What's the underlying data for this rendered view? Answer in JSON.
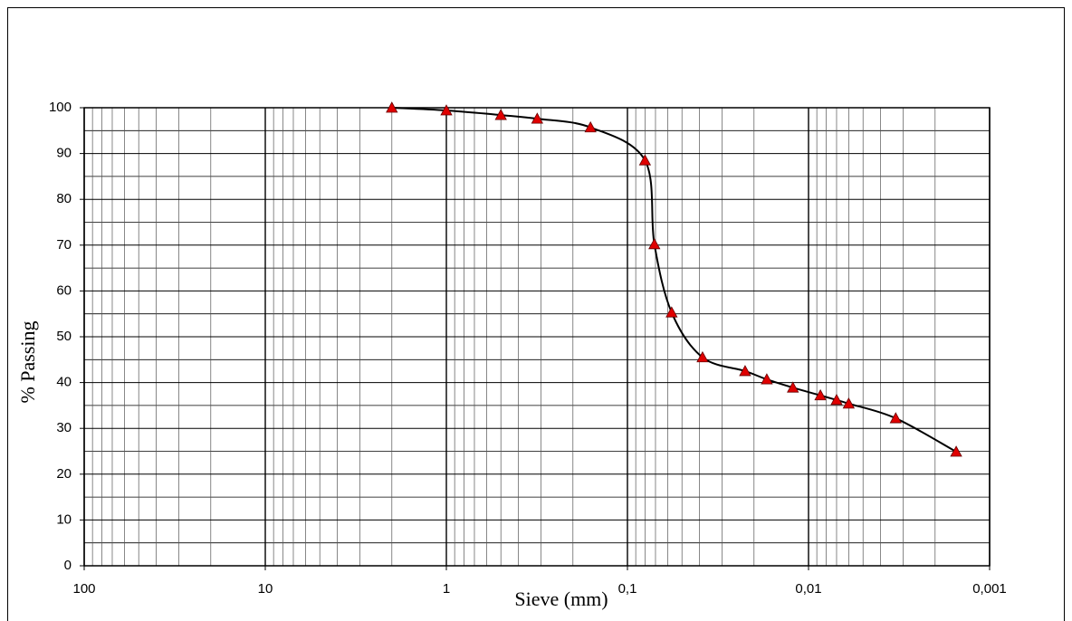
{
  "chart_data": {
    "type": "line",
    "x_label": "Sieve (mm)",
    "y_label": "% Passing",
    "x": [
      2,
      1,
      0.5,
      0.315,
      0.16,
      0.08,
      0.071,
      0.057,
      0.0385,
      0.0224,
      0.017,
      0.0122,
      0.0086,
      0.007,
      0.006,
      0.0033,
      0.00153
    ],
    "series": [
      {
        "name": "Passing",
        "color": "#000000",
        "marker_color": "#e00000",
        "values": [
          100,
          99.4,
          98.4,
          97.6,
          95.7,
          88.5,
          70.2,
          55.3,
          45.5,
          42.5,
          40.7,
          38.9,
          37.2,
          36.2,
          35.4,
          32.2,
          24.9
        ]
      }
    ],
    "xscale": "log",
    "xlim": [
      100,
      0.001
    ],
    "xticks": [
      100,
      10,
      1,
      {
        "value": 0.1,
        "label": "0,1"
      },
      {
        "value": 0.01,
        "label": "0,01"
      },
      {
        "value": 0.001,
        "label": "0,001"
      }
    ],
    "ylim": [
      0,
      100
    ],
    "yticks": [
      0,
      10,
      20,
      30,
      40,
      50,
      60,
      70,
      80,
      90,
      100
    ],
    "grid": true,
    "minor_grid": true
  }
}
